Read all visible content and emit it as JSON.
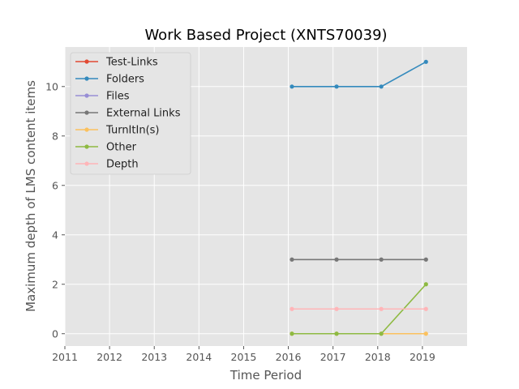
{
  "chart_data": {
    "type": "line",
    "title": "Work Based Project (XNTS70039)",
    "xlabel": "Time Period",
    "ylabel": "Maximum depth of LMS content items",
    "xlim": [
      2011,
      2020
    ],
    "ylim": [
      -0.5,
      11.6
    ],
    "xticks": [
      "2011",
      "2012",
      "2013",
      "2014",
      "2015",
      "2016",
      "2017",
      "2018",
      "2019"
    ],
    "yticks": [
      "0",
      "2",
      "4",
      "6",
      "8",
      "10"
    ],
    "grid": true,
    "legend_position": "top-left",
    "x": [
      2016.08,
      2017.08,
      2018.08,
      2019.08
    ],
    "series": [
      {
        "name": "Test-Links",
        "color": "#e24a33",
        "values": [
          null,
          null,
          null,
          null
        ]
      },
      {
        "name": "Folders",
        "color": "#348abd",
        "values": [
          10,
          10,
          10,
          11
        ]
      },
      {
        "name": "Files",
        "color": "#988ed5",
        "values": [
          null,
          null,
          null,
          null
        ]
      },
      {
        "name": "External Links",
        "color": "#777777",
        "values": [
          3,
          3,
          3,
          3
        ]
      },
      {
        "name": "TurnItIn(s)",
        "color": "#fbc15e",
        "values": [
          0,
          0,
          0,
          0
        ]
      },
      {
        "name": "Other",
        "color": "#8eba42",
        "values": [
          0,
          0,
          0,
          2
        ]
      },
      {
        "name": "Depth",
        "color": "#ffb5b8",
        "values": [
          1,
          1,
          1,
          1
        ]
      }
    ]
  }
}
